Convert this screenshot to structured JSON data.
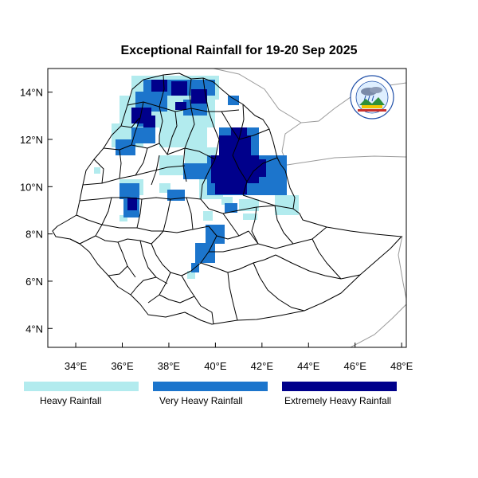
{
  "title": "Exceptional Rainfall for 19-20 Sep 2025",
  "axes": {
    "x_ticks": [
      "34°E",
      "36°E",
      "38°E",
      "40°E",
      "42°E",
      "44°E",
      "46°E",
      "48°E"
    ],
    "y_ticks": [
      "14°N",
      "12°N",
      "10°N",
      "8°N",
      "6°N",
      "4°N"
    ],
    "lon_range": [
      32.8,
      48.2
    ],
    "lat_range": [
      3.2,
      15.0
    ]
  },
  "logo": {
    "text": "ETHIOPIAN METEOROLOGY INSTITUTE",
    "colors": [
      "#1f4fa8",
      "#2f8f3a",
      "#c9302c",
      "#f2c500"
    ]
  },
  "legend": [
    {
      "label": "Heavy Rainfall",
      "color": "#b2ebee"
    },
    {
      "label": "Very Heavy Rainfall",
      "color": "#1c75cc"
    },
    {
      "label": "Extremely Heavy Rainfall",
      "color": "#00008b"
    }
  ],
  "colors": {
    "boundary": "#000000",
    "neighbor_boundary": "#9a9a9a",
    "frame": "#000000"
  }
}
